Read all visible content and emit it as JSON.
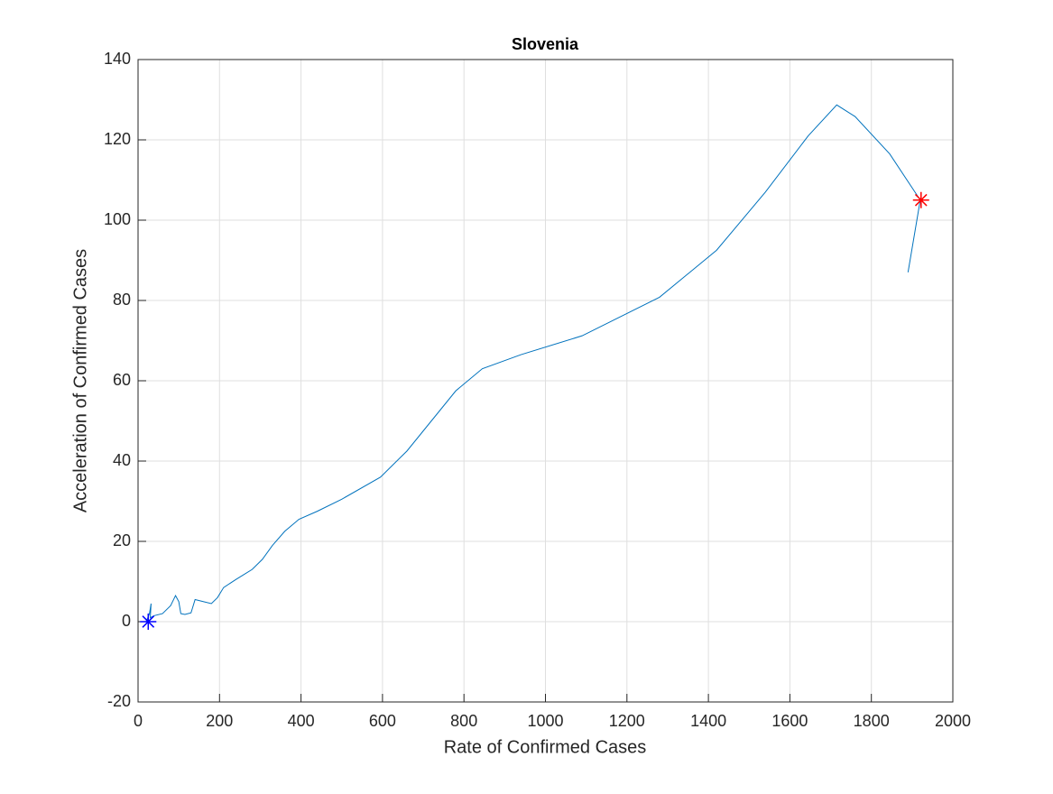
{
  "chart_data": {
    "type": "line",
    "title": "Slovenia",
    "x_label": "Rate of Confirmed Cases",
    "y_label": "Acceleration of Confirmed Cases",
    "xlim": [
      0,
      2000
    ],
    "xticks": [
      0,
      200,
      400,
      600,
      800,
      1000,
      1200,
      1400,
      1600,
      1800,
      2000
    ],
    "ylim": [
      -20,
      140
    ],
    "yticks": [
      -20,
      0,
      20,
      40,
      60,
      80,
      100,
      120,
      140
    ],
    "grid": true,
    "series": [
      {
        "color": "#0072bd",
        "marker": "none",
        "x": [
          20,
          28,
          32,
          30,
          40,
          60,
          80,
          92,
          100,
          105,
          115,
          130,
          140,
          160,
          180,
          195,
          210,
          240,
          280,
          305,
          330,
          360,
          395,
          440,
          500,
          595,
          660,
          780,
          845,
          940,
          1090,
          1280,
          1420,
          1540,
          1645,
          1715,
          1760,
          1845,
          1920,
          1890
        ],
        "values": [
          0,
          2,
          4.5,
          1,
          1.5,
          2,
          4,
          6.5,
          5,
          2,
          1.8,
          2.2,
          5.5,
          5,
          4.5,
          6,
          8.5,
          10.5,
          13,
          15.5,
          19,
          22.5,
          25.5,
          27.5,
          30.5,
          36,
          42.5,
          57.5,
          63,
          66.5,
          71.2,
          80.8,
          92.5,
          107,
          121,
          128.7,
          125.8,
          116.5,
          105,
          87
        ]
      },
      {
        "color": "#0000ff",
        "marker": "*",
        "x": [
          25
        ],
        "values": [
          0
        ]
      },
      {
        "color": "#ff0000",
        "marker": "*",
        "x": [
          1922
        ],
        "values": [
          105
        ]
      }
    ]
  }
}
